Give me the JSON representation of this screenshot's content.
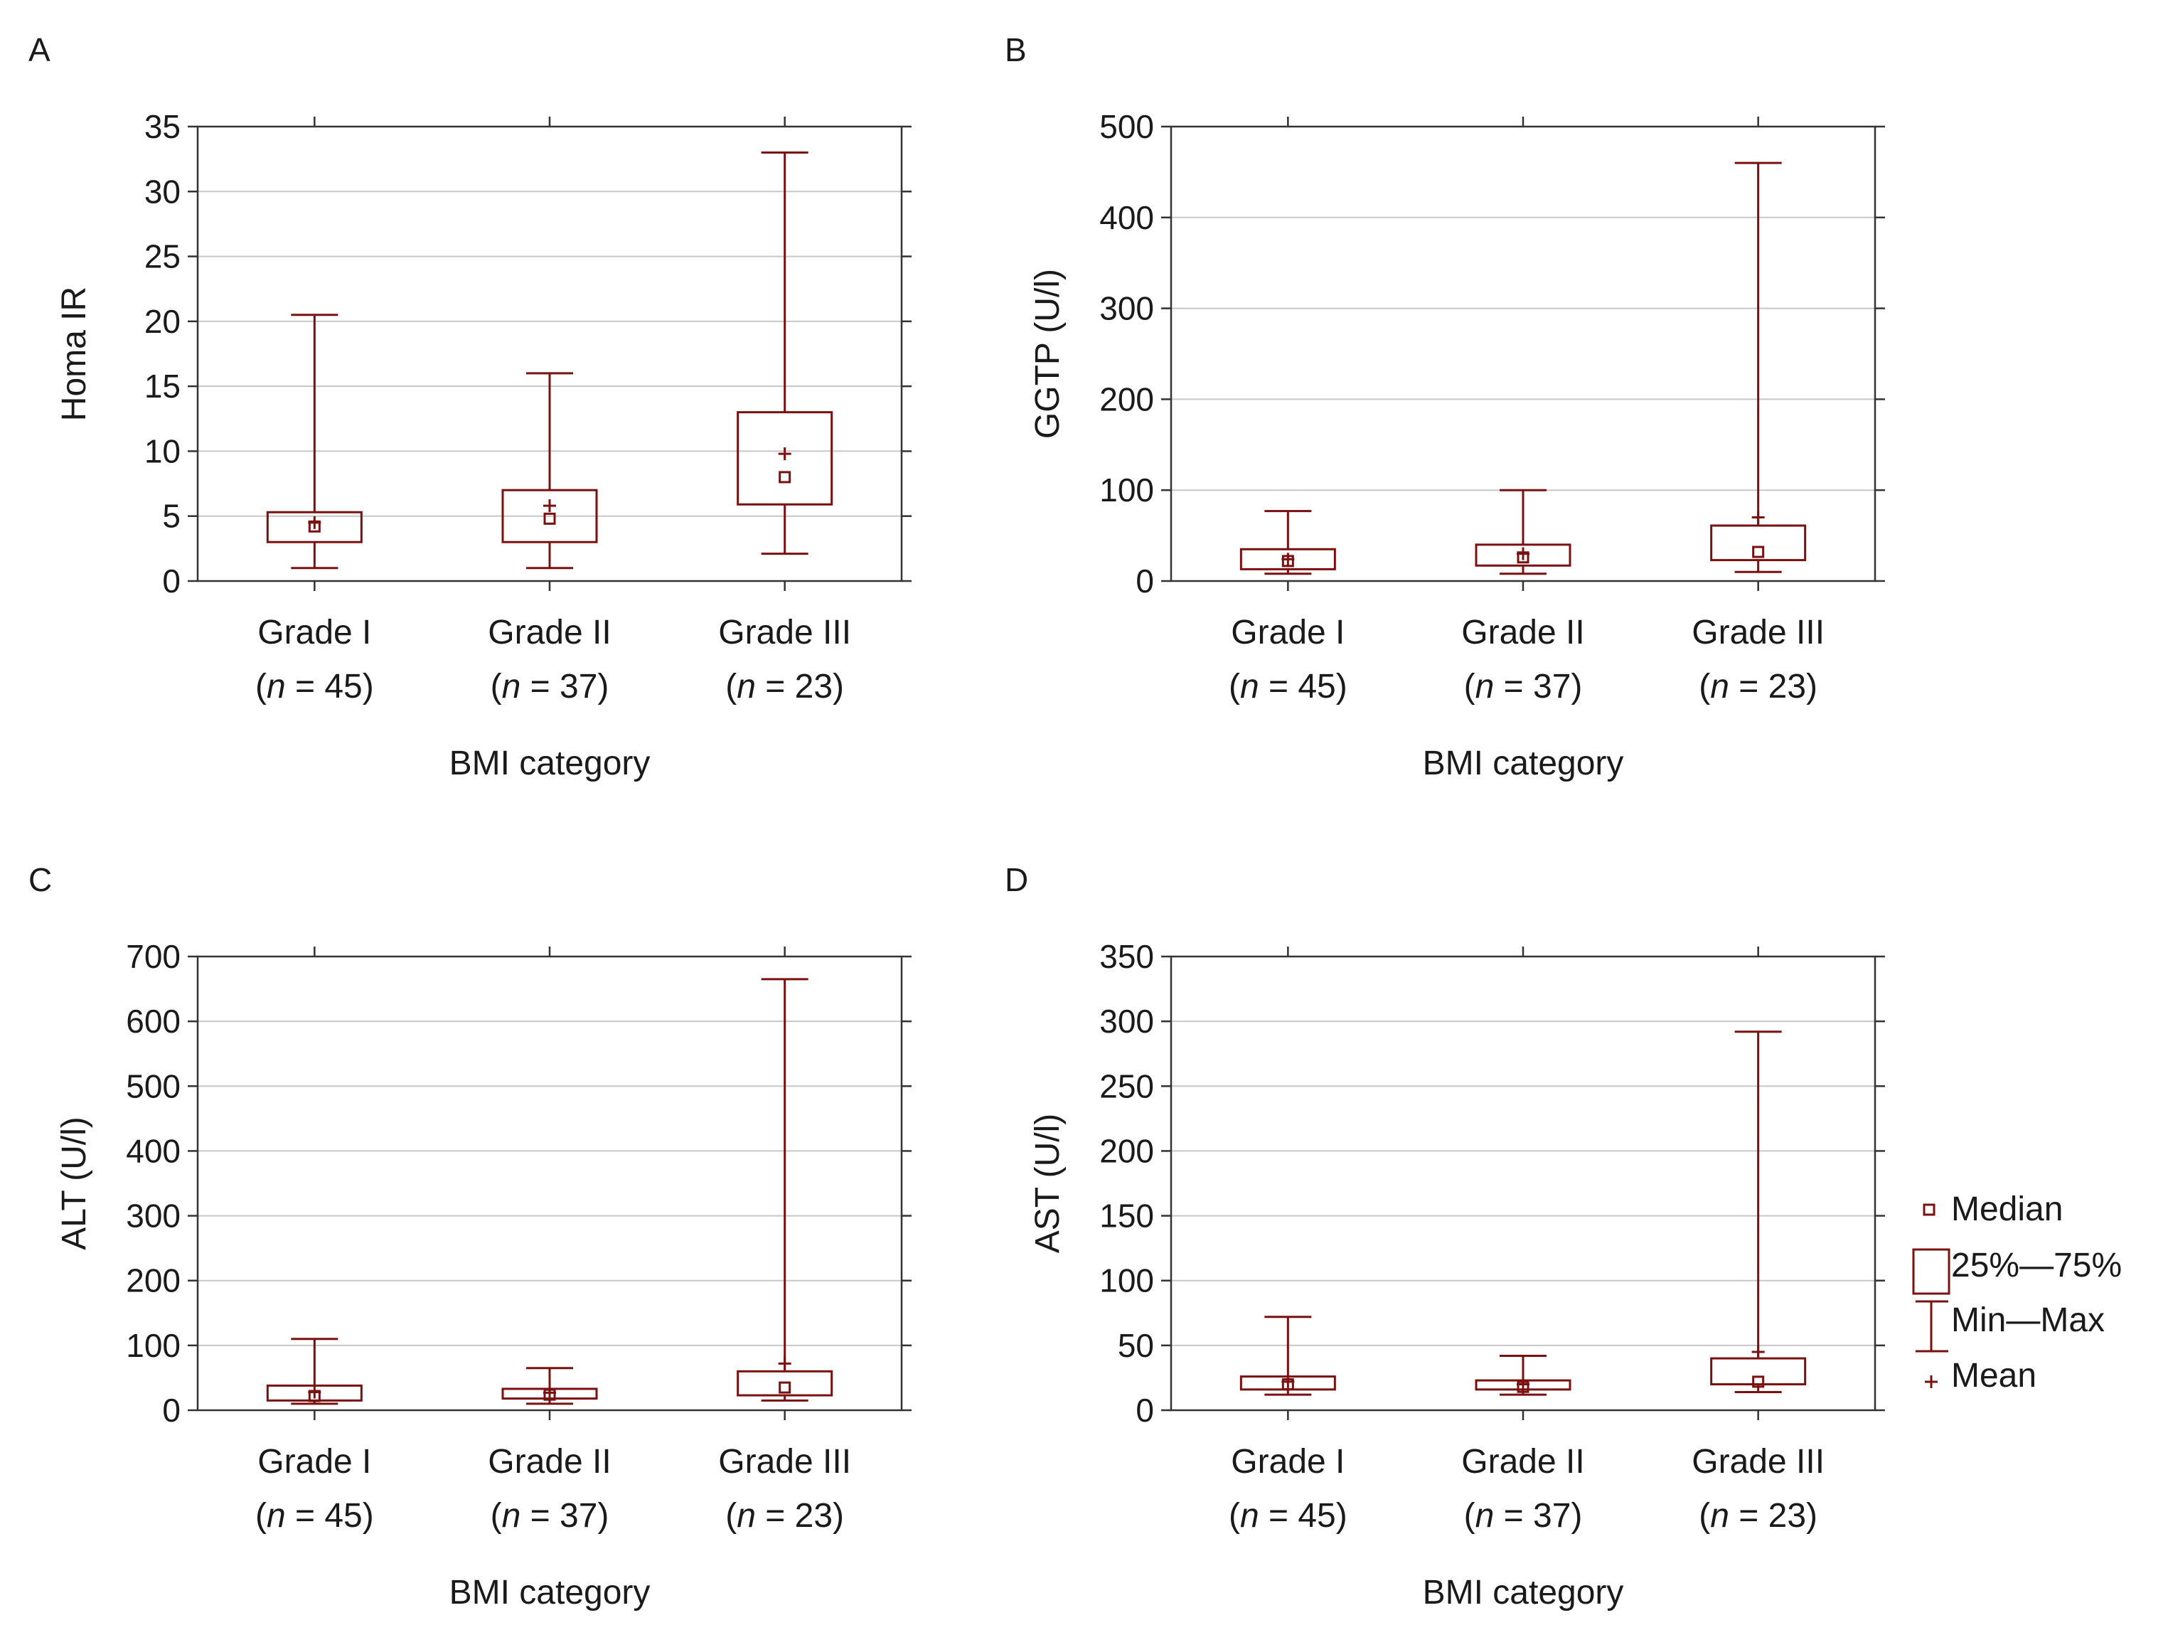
{
  "colors": {
    "series": "#7a1010",
    "frame": "#333333",
    "grid": "#c8c8c8",
    "text": "#1a1a1a"
  },
  "legend": {
    "median": "Median",
    "iqr": "25%—75%",
    "range": "Min—Max",
    "mean": "Mean"
  },
  "chart_data": [
    {
      "panel": "A",
      "type": "box",
      "ylabel": "Homa IR",
      "xlabel": "BMI category",
      "ylim": [
        0,
        35
      ],
      "yticks": [
        0,
        5,
        10,
        15,
        20,
        25,
        30,
        35
      ],
      "categories": [
        {
          "name": "Grade I",
          "n": "45"
        },
        {
          "name": "Grade II",
          "n": "37"
        },
        {
          "name": "Grade III",
          "n": "23"
        }
      ],
      "boxes": [
        {
          "min": 1.0,
          "q1": 3.0,
          "median": 4.2,
          "mean": 4.5,
          "q3": 5.3,
          "max": 20.5
        },
        {
          "min": 1.0,
          "q1": 3.0,
          "median": 4.8,
          "mean": 5.8,
          "q3": 7.0,
          "max": 16.0
        },
        {
          "min": 2.1,
          "q1": 5.9,
          "median": 8.0,
          "mean": 9.8,
          "q3": 13.0,
          "max": 33.0
        }
      ]
    },
    {
      "panel": "B",
      "type": "box",
      "ylabel": "GGTP (U/l)",
      "xlabel": "BMI category",
      "ylim": [
        0,
        500
      ],
      "yticks": [
        0,
        100,
        200,
        300,
        400,
        500
      ],
      "categories": [
        {
          "name": "Grade I",
          "n": "45"
        },
        {
          "name": "Grade II",
          "n": "37"
        },
        {
          "name": "Grade III",
          "n": "23"
        }
      ],
      "boxes": [
        {
          "min": 8,
          "q1": 13,
          "median": 22,
          "mean": 24,
          "q3": 35,
          "max": 77
        },
        {
          "min": 8,
          "q1": 17,
          "median": 26,
          "mean": 30,
          "q3": 40,
          "max": 100
        },
        {
          "min": 10,
          "q1": 23,
          "median": 32,
          "mean": 70,
          "q3": 61,
          "max": 460
        }
      ]
    },
    {
      "panel": "C",
      "type": "box",
      "ylabel": "ALT (U/l)",
      "xlabel": "BMI category",
      "ylim": [
        0,
        700
      ],
      "yticks": [
        0,
        100,
        200,
        300,
        400,
        500,
        600,
        700
      ],
      "categories": [
        {
          "name": "Grade I",
          "n": "45"
        },
        {
          "name": "Grade II",
          "n": "37"
        },
        {
          "name": "Grade III",
          "n": "23"
        }
      ],
      "boxes": [
        {
          "min": 10,
          "q1": 15,
          "median": 22,
          "mean": 28,
          "q3": 38,
          "max": 110
        },
        {
          "min": 10,
          "q1": 18,
          "median": 24,
          "mean": 27,
          "q3": 33,
          "max": 65
        },
        {
          "min": 15,
          "q1": 23,
          "median": 35,
          "mean": 72,
          "q3": 60,
          "max": 665
        }
      ]
    },
    {
      "panel": "D",
      "type": "box",
      "ylabel": "AST (U/l)",
      "xlabel": "BMI category",
      "ylim": [
        0,
        350
      ],
      "yticks": [
        0,
        50,
        100,
        150,
        200,
        250,
        300,
        350
      ],
      "categories": [
        {
          "name": "Grade I",
          "n": "45"
        },
        {
          "name": "Grade II",
          "n": "37"
        },
        {
          "name": "Grade III",
          "n": "23"
        }
      ],
      "boxes": [
        {
          "min": 12,
          "q1": 16,
          "median": 20,
          "mean": 22,
          "q3": 26,
          "max": 72
        },
        {
          "min": 12,
          "q1": 16,
          "median": 18,
          "mean": 20,
          "q3": 23,
          "max": 42
        },
        {
          "min": 14,
          "q1": 20,
          "median": 22,
          "mean": 45,
          "q3": 40,
          "max": 292
        }
      ]
    }
  ]
}
